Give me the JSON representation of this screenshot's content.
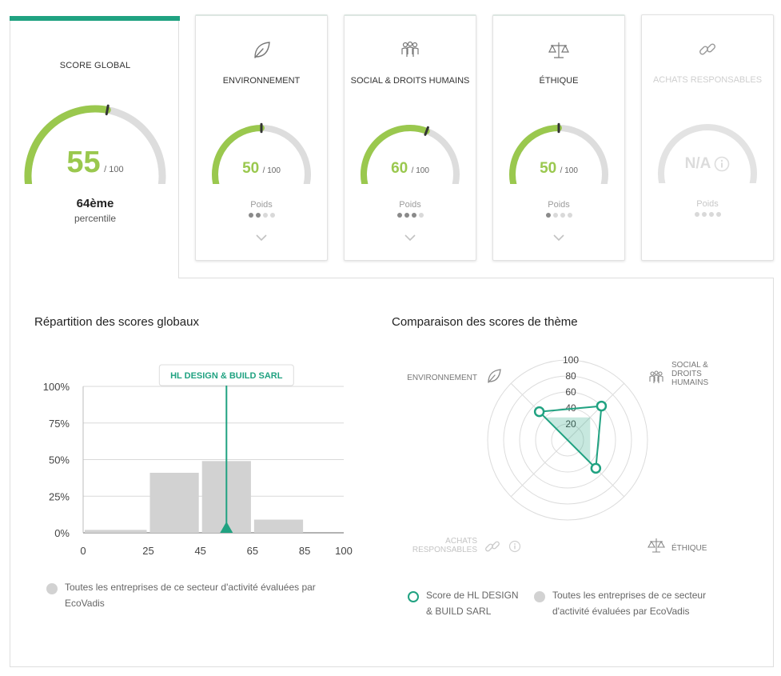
{
  "global": {
    "title": "SCORE GLOBAL",
    "score": "55",
    "out_of": "/ 100",
    "score_fraction": 0.55,
    "percentile_rank": "64ème",
    "percentile_label": "percentile"
  },
  "themes": [
    {
      "name": "ENVIRONNEMENT",
      "icon": "leaf-icon",
      "score": "50",
      "out_of": "/ 100",
      "score_fraction": 0.5,
      "weight_label": "Poids",
      "weight_level": 2,
      "disabled": false
    },
    {
      "name": "SOCIAL & DROITS HUMAINS",
      "icon": "people-icon",
      "score": "60",
      "out_of": "/ 100",
      "score_fraction": 0.6,
      "weight_label": "Poids",
      "weight_level": 3,
      "disabled": false
    },
    {
      "name": "ÉTHIQUE",
      "icon": "balance-scale-icon",
      "score": "50",
      "out_of": "/ 100",
      "score_fraction": 0.5,
      "weight_label": "Poids",
      "weight_level": 1,
      "disabled": false
    },
    {
      "name": "ACHATS RESPONSABLES",
      "icon": "chain-link-icon",
      "score": "N/A",
      "weight_label": "Poids",
      "weight_level": 0,
      "disabled": true
    }
  ],
  "colors": {
    "accent": "#20a281",
    "score_green": "#9ac84e",
    "gauge_track": "#dddddd",
    "bar_grey": "#d2d2d2"
  },
  "distribution": {
    "title": "Répartition des scores globaux",
    "company_marker_label": "HL DESIGN & BUILD SARL",
    "legend": "Toutes les entreprises de ce secteur d'activité évaluées par EcoVadis"
  },
  "radar": {
    "title": "Comparaison des scores de thème",
    "axis_ticks": [
      "100",
      "80",
      "60",
      "40",
      "20"
    ],
    "labels": {
      "environment": "ENVIRONNEMENT",
      "social_line1": "SOCIAL &",
      "social_line2": "DROITS",
      "social_line3": "HUMAINS",
      "ethics": "ÉTHIQUE",
      "purchasing_line1": "ACHATS",
      "purchasing_line2": "RESPONSABLES"
    },
    "legend_company_line1": "Score de HL DESIGN",
    "legend_company_line2": "& BUILD SARL",
    "legend_sector_line1": "Toutes les entreprises de ce secteur",
    "legend_sector_line2": "d'activité évaluées par EcoVadis"
  },
  "chart_data": [
    {
      "type": "bar",
      "title": "Répartition des scores globaux",
      "x_tick_labels": [
        "0",
        "25",
        "45",
        "65",
        "85",
        "100"
      ],
      "y_tick_labels": [
        "100%",
        "75%",
        "50%",
        "25%",
        "0%"
      ],
      "bins": [
        {
          "from": 0,
          "to": 25,
          "value": 2
        },
        {
          "from": 25,
          "to": 45,
          "value": 41
        },
        {
          "from": 45,
          "to": 65,
          "value": 49
        },
        {
          "from": 65,
          "to": 85,
          "value": 9
        },
        {
          "from": 85,
          "to": 100,
          "value": 0
        }
      ],
      "marker": {
        "label": "HL DESIGN & BUILD SARL",
        "x": 55
      },
      "xlim": [
        0,
        100
      ],
      "ylim": [
        0,
        100
      ],
      "grid": true,
      "legend": "bottom"
    },
    {
      "type": "radar",
      "title": "Comparaison des scores de thème",
      "axes": [
        "SOCIAL & DROITS HUMAINS",
        "ÉTHIQUE",
        "ACHATS RESPONSABLES",
        "ENVIRONNEMENT"
      ],
      "range": [
        0,
        100
      ],
      "series": [
        {
          "name": "Score de HL DESIGN & BUILD SARL",
          "values": [
            60,
            50,
            0,
            50
          ]
        },
        {
          "name": "Toutes les entreprises de ce secteur d'activité évaluées par EcoVadis",
          "values": [
            40,
            40,
            0,
            40
          ]
        }
      ]
    }
  ]
}
